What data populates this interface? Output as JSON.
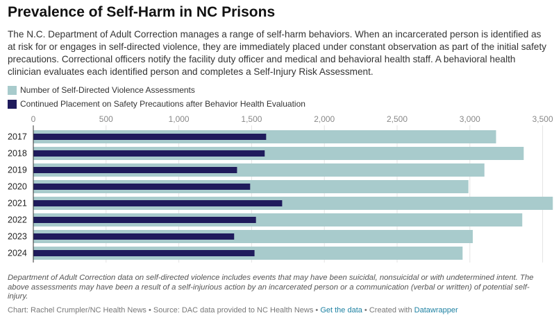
{
  "title": "Prevalence of Self-Harm in NC Prisons",
  "description": "The N.C. Department of Adult Correction manages a range of self-harm behaviors. When an incarcerated person is identified as at risk for or engages in self-directed violence, they are immediately placed under constant observation as part of the initial safety precautions. Correctional officers notify the facility duty officer and medical and behavioral health staff. A behavioral health clinician evaluates each identified person and completes a Self-Injury Risk Assessment.",
  "chart_data": {
    "type": "bar",
    "orientation": "horizontal",
    "layout": "overlapping",
    "categories": [
      "2017",
      "2018",
      "2019",
      "2020",
      "2021",
      "2022",
      "2023",
      "2024"
    ],
    "series": [
      {
        "name": "Number of Self-Directed Violence Assessments",
        "color": "#a8cbcc",
        "values": [
          3180,
          3370,
          3100,
          2990,
          3570,
          3360,
          3020,
          2950
        ]
      },
      {
        "name": "Continued Placement on Safety Precautions after Behavior Health Evaluation",
        "color": "#1f1b5c",
        "values": [
          1600,
          1590,
          1400,
          1490,
          1710,
          1530,
          1380,
          1520
        ]
      }
    ],
    "xlim": [
      0,
      3540
    ],
    "x_ticks": [
      0,
      500,
      1000,
      1500,
      2000,
      2500,
      3000,
      3500
    ],
    "x_tick_labels": [
      "0",
      "500",
      "1,000",
      "1,500",
      "2,000",
      "2,500",
      "3,000",
      "3,500"
    ],
    "grid": true,
    "legend_position": "top-left"
  },
  "notes": "Department of Adult Correction data on self-directed violence includes events that may have been suicidal, nonsuicidal or with undetermined intent. The above assessments may have been a result of a self-injurious action by an incarcerated person or a communication (verbal or written) of potential self-injury.",
  "byline": {
    "credit": "Chart: Rachel Crumpler/NC Health News • Source: DAC data provided to NC Health News • ",
    "get_data": "Get the data",
    "separator": " • Created with ",
    "tool": "Datawrapper"
  }
}
